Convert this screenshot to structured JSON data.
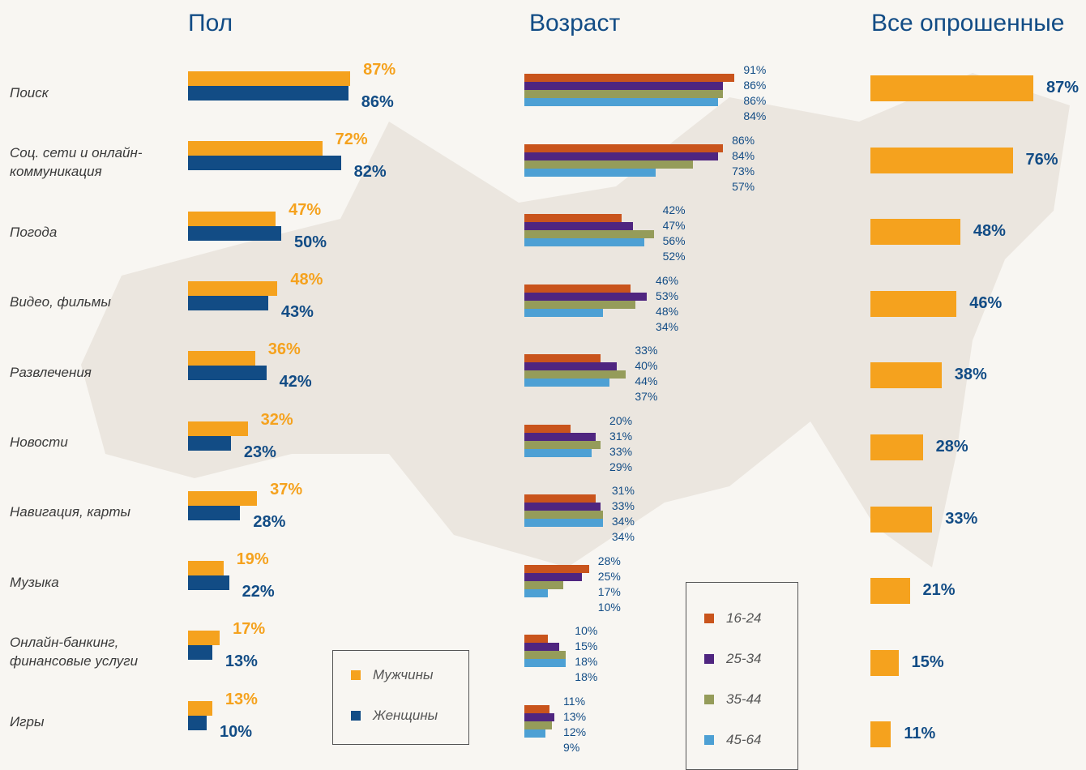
{
  "chart_data": [
    {
      "type": "bar",
      "title": "Пол",
      "categories": [
        "Поиск",
        "Соц. сети и онлайн-коммуникация",
        "Погода",
        "Видео, фильмы",
        "Развлечения",
        "Новости",
        "Навигация, карты",
        "Музыка",
        "Онлайн-банкинг, финансовые услуги",
        "Игры"
      ],
      "series": [
        {
          "name": "Мужчины",
          "color": "#f5a21e",
          "values": [
            87,
            72,
            47,
            48,
            36,
            32,
            37,
            19,
            17,
            13
          ],
          "value_labels": [
            "87%",
            "72%",
            "47%",
            "48%",
            "36%",
            "32%",
            "37%",
            "19%",
            "17%",
            "13%"
          ]
        },
        {
          "name": "Женщины",
          "color": "#124c85",
          "values": [
            86,
            82,
            50,
            43,
            42,
            23,
            28,
            22,
            13,
            10
          ],
          "value_labels": [
            "86%",
            "82%",
            "50%",
            "43%",
            "42%",
            "23%",
            "28%",
            "22%",
            "13%",
            "10%"
          ]
        }
      ]
    },
    {
      "type": "bar",
      "title": "Возраст",
      "series": [
        {
          "name": "16-24",
          "color": "#c9541c",
          "values": [
            91,
            86,
            42,
            46,
            33,
            20,
            31,
            28,
            10,
            11
          ],
          "value_labels": [
            "91%",
            "86%",
            "42%",
            "46%",
            "33%",
            "20%",
            "31%",
            "28%",
            "10%",
            "11%"
          ]
        },
        {
          "name": "25-34",
          "color": "#4f2580",
          "values": [
            86,
            84,
            47,
            53,
            40,
            31,
            33,
            25,
            15,
            13
          ],
          "value_labels": [
            "86%",
            "84%",
            "47%",
            "53%",
            "40%",
            "31%",
            "33%",
            "25%",
            "15%",
            "13%"
          ]
        },
        {
          "name": "35-44",
          "color": "#959c5a",
          "values": [
            86,
            73,
            56,
            48,
            44,
            33,
            34,
            17,
            18,
            12
          ],
          "value_labels": [
            "86%",
            "73%",
            "56%",
            "48%",
            "44%",
            "33%",
            "34%",
            "17%",
            "18%",
            "12%"
          ]
        },
        {
          "name": "45-64",
          "color": "#4da0d4",
          "values": [
            84,
            57,
            52,
            34,
            37,
            29,
            34,
            10,
            18,
            9
          ],
          "value_labels": [
            "84%",
            "57%",
            "52%",
            "34%",
            "37%",
            "29%",
            "34%",
            "10%",
            "18%",
            "9%"
          ]
        }
      ]
    },
    {
      "type": "bar",
      "title": "Все опрошенные",
      "color": "#f5a21e",
      "values": [
        87,
        76,
        48,
        46,
        38,
        28,
        33,
        21,
        15,
        11
      ],
      "value_labels": [
        "87%",
        "76%",
        "48%",
        "46%",
        "38%",
        "28%",
        "33%",
        "21%",
        "15%",
        "11%"
      ]
    }
  ]
}
